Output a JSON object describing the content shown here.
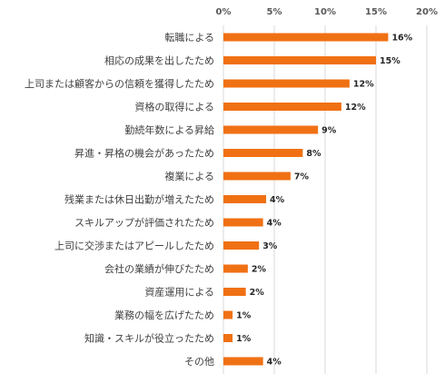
{
  "chart_data": {
    "type": "bar",
    "orientation": "horizontal",
    "categories": [
      "転職による",
      "相応の成果を出したため",
      "上司または顧客からの信頼を獲得したため",
      "資格の取得による",
      "勤続年数による昇給",
      "昇進・昇格の機会があったため",
      "複業による",
      "残業または休日出勤が増えたため",
      "スキルアップが評価されたため",
      "上司に交渉またはアピールしたため",
      "会社の業績が伸びたため",
      "資産運用による",
      "業務の幅を広げたため",
      "知識・スキルが役立ったため",
      "その他"
    ],
    "values": [
      16.2,
      15.0,
      12.4,
      11.6,
      9.3,
      7.8,
      6.6,
      4.2,
      3.9,
      3.5,
      2.4,
      2.2,
      0.9,
      0.9,
      3.9
    ],
    "data_labels": [
      "16%",
      "15%",
      "12%",
      "12%",
      "9%",
      "8%",
      "7%",
      "4%",
      "4%",
      "3%",
      "2%",
      "2%",
      "1%",
      "1%",
      "4%"
    ],
    "xlim": [
      0,
      20
    ],
    "ticks": [
      0,
      5,
      10,
      15,
      20
    ],
    "tick_labels": [
      "0%",
      "5%",
      "10%",
      "15%",
      "20%"
    ],
    "axis_position": "top",
    "grid": true,
    "legend": "none",
    "bar_color": "#f07114"
  }
}
